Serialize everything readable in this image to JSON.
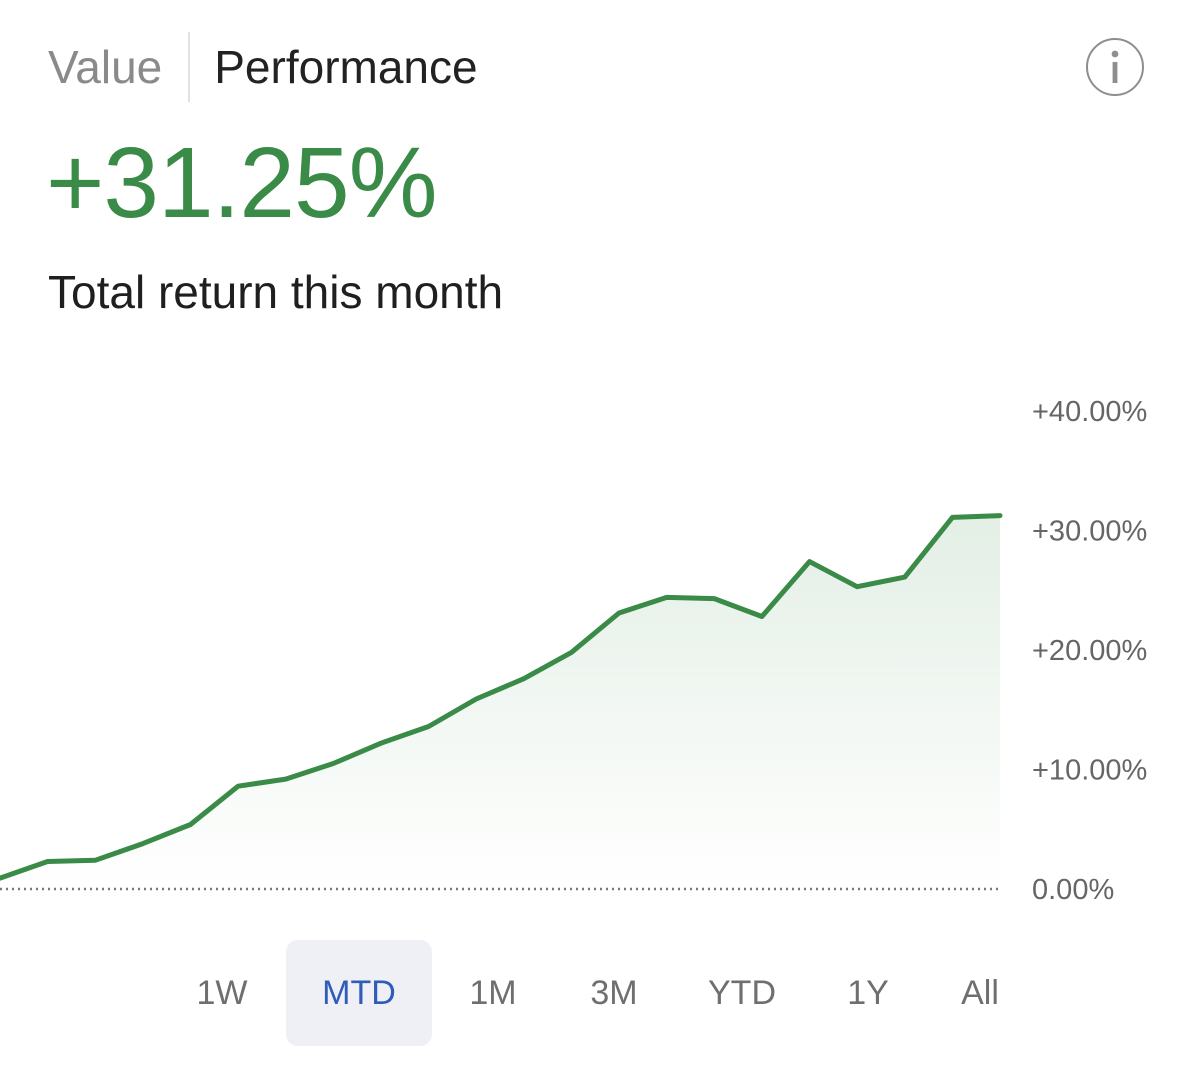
{
  "tabs": {
    "value_label": "Value",
    "performance_label": "Performance"
  },
  "info_icon": "info-icon",
  "summary": {
    "value": "+31.25%",
    "caption": "Total return this month"
  },
  "colors": {
    "positive": "#3a8a48",
    "line": "#3a8a48",
    "active_range_bg": "#eef0f5",
    "active_range_text": "#2e5cb8"
  },
  "chart_data": {
    "type": "area",
    "values": [
      0.9,
      2.3,
      2.4,
      3.8,
      5.4,
      8.6,
      9.2,
      10.5,
      12.2,
      13.6,
      15.9,
      17.6,
      19.8,
      23.1,
      24.4,
      24.3,
      22.8,
      27.4,
      25.3,
      26.1,
      31.1,
      31.25
    ],
    "y_ticks": [
      "+40.00%",
      "+30.00%",
      "+20.00%",
      "+10.00%",
      "0.00%"
    ],
    "ylim": [
      0,
      40
    ],
    "baseline": 0,
    "y_axis_position": "right"
  },
  "ranges": {
    "active": "MTD",
    "items": [
      "1W",
      "MTD",
      "1M",
      "3M",
      "YTD",
      "1Y",
      "All"
    ]
  }
}
